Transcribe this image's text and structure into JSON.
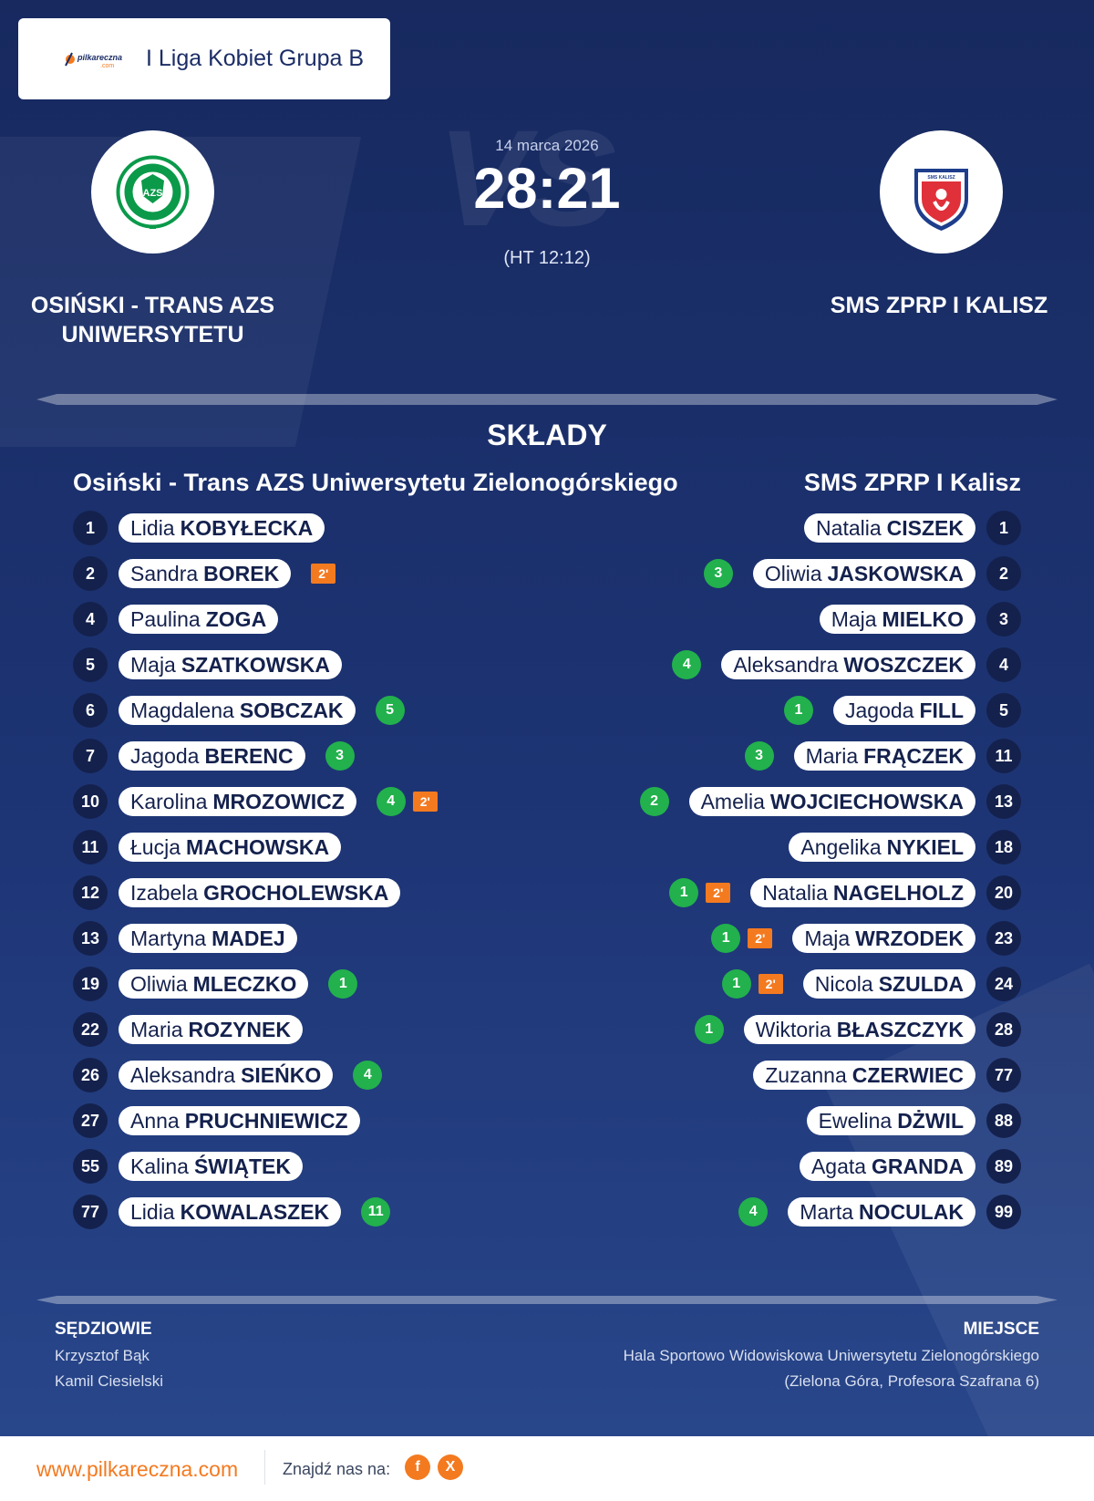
{
  "header": {
    "league": "I Liga Kobiet Grupa B",
    "logo_text": "pilkareczna",
    "logo_subtext": ".com"
  },
  "match": {
    "date": "14 marca 2026",
    "score": "28:21",
    "halftime": "(HT 12:12)",
    "watermark": "VS"
  },
  "home_team": {
    "name": "OSIŃSKI - TRANS AZS UNIWERSYTETU",
    "full_name": "Osiński - Trans AZS Uniwersytetu Zielonogórskiego",
    "crest_text": "AZS",
    "crest_color": "#0a9a4a"
  },
  "away_team": {
    "name": "SMS ZPRP I KALISZ",
    "full_name": "SMS ZPRP I Kalisz",
    "crest_text": "SMS KALISZ",
    "crest_color": "#e0303a"
  },
  "lineups": {
    "title": "SKŁADY",
    "home": [
      {
        "number": "1",
        "first": "Lidia",
        "last": "KOBYŁECKA",
        "goals": "",
        "penalties": ""
      },
      {
        "number": "2",
        "first": "Sandra",
        "last": "BOREK",
        "goals": "",
        "penalties": "2'"
      },
      {
        "number": "4",
        "first": "Paulina",
        "last": "ZOGA",
        "goals": "",
        "penalties": ""
      },
      {
        "number": "5",
        "first": "Maja",
        "last": "SZATKOWSKA",
        "goals": "",
        "penalties": ""
      },
      {
        "number": "6",
        "first": "Magdalena",
        "last": "SOBCZAK",
        "goals": "5",
        "penalties": ""
      },
      {
        "number": "7",
        "first": "Jagoda",
        "last": "BERENC",
        "goals": "3",
        "penalties": ""
      },
      {
        "number": "10",
        "first": "Karolina",
        "last": "MROZOWICZ",
        "goals": "4",
        "penalties": "2'"
      },
      {
        "number": "11",
        "first": "Łucja",
        "last": "MACHOWSKA",
        "goals": "",
        "penalties": ""
      },
      {
        "number": "12",
        "first": "Izabela",
        "last": "GROCHOLEWSKA",
        "goals": "",
        "penalties": ""
      },
      {
        "number": "13",
        "first": "Martyna",
        "last": "MADEJ",
        "goals": "",
        "penalties": ""
      },
      {
        "number": "19",
        "first": "Oliwia",
        "last": "MLECZKO",
        "goals": "1",
        "penalties": ""
      },
      {
        "number": "22",
        "first": "Maria",
        "last": "ROZYNEK",
        "goals": "",
        "penalties": ""
      },
      {
        "number": "26",
        "first": "Aleksandra",
        "last": "SIEŃKO",
        "goals": "4",
        "penalties": ""
      },
      {
        "number": "27",
        "first": "Anna",
        "last": "PRUCHNIEWICZ",
        "goals": "",
        "penalties": ""
      },
      {
        "number": "55",
        "first": "Kalina",
        "last": "ŚWIĄTEK",
        "goals": "",
        "penalties": ""
      },
      {
        "number": "77",
        "first": "Lidia",
        "last": "KOWALASZEK",
        "goals": "11",
        "penalties": ""
      }
    ],
    "away": [
      {
        "number": "1",
        "first": "Natalia",
        "last": "CISZEK",
        "goals": "",
        "penalties": ""
      },
      {
        "number": "2",
        "first": "Oliwia",
        "last": "JASKOWSKA",
        "goals": "3",
        "penalties": ""
      },
      {
        "number": "3",
        "first": "Maja",
        "last": "MIELKO",
        "goals": "",
        "penalties": ""
      },
      {
        "number": "4",
        "first": "Aleksandra",
        "last": "WOSZCZEK",
        "goals": "4",
        "penalties": ""
      },
      {
        "number": "5",
        "first": "Jagoda",
        "last": "FILL",
        "goals": "1",
        "penalties": ""
      },
      {
        "number": "11",
        "first": "Maria",
        "last": "FRĄCZEK",
        "goals": "3",
        "penalties": ""
      },
      {
        "number": "13",
        "first": "Amelia",
        "last": "WOJCIECHOWSKA",
        "goals": "2",
        "penalties": ""
      },
      {
        "number": "18",
        "first": "Angelika",
        "last": "NYKIEL",
        "goals": "",
        "penalties": ""
      },
      {
        "number": "20",
        "first": "Natalia",
        "last": "NAGELHOLZ",
        "goals": "1",
        "penalties": "2'"
      },
      {
        "number": "23",
        "first": "Maja",
        "last": "WRZODEK",
        "goals": "1",
        "penalties": "2'"
      },
      {
        "number": "24",
        "first": "Nicola",
        "last": "SZULDA",
        "goals": "1",
        "penalties": "2'"
      },
      {
        "number": "28",
        "first": "Wiktoria",
        "last": "BŁASZCZYK",
        "goals": "1",
        "penalties": ""
      },
      {
        "number": "77",
        "first": "Zuzanna",
        "last": "CZERWIEC",
        "goals": "",
        "penalties": ""
      },
      {
        "number": "88",
        "first": "Ewelina",
        "last": "DŻWIL",
        "goals": "",
        "penalties": ""
      },
      {
        "number": "89",
        "first": "Agata",
        "last": "GRANDA",
        "goals": "",
        "penalties": ""
      },
      {
        "number": "99",
        "first": "Marta",
        "last": "NOCULAK",
        "goals": "4",
        "penalties": ""
      }
    ]
  },
  "referees": {
    "title": "SĘDZIOWIE",
    "names": [
      "Krzysztof Bąk",
      "Kamil Ciesielski"
    ]
  },
  "venue": {
    "title": "MIEJSCE",
    "name": "Hala Sportowo Widowiskowa Uniwersytetu Zielonogórskiego",
    "address": "(Zielona Góra, Profesora Szafrana 6)"
  },
  "footer": {
    "url": "www.pilkareczna.com",
    "find_us": "Znajdź nas na:",
    "social": [
      "f",
      "X"
    ]
  },
  "colors": {
    "background": "#1b2f6b",
    "accent": "#f47a20",
    "goal_badge": "#22b14c",
    "number_badge": "#14214d"
  }
}
